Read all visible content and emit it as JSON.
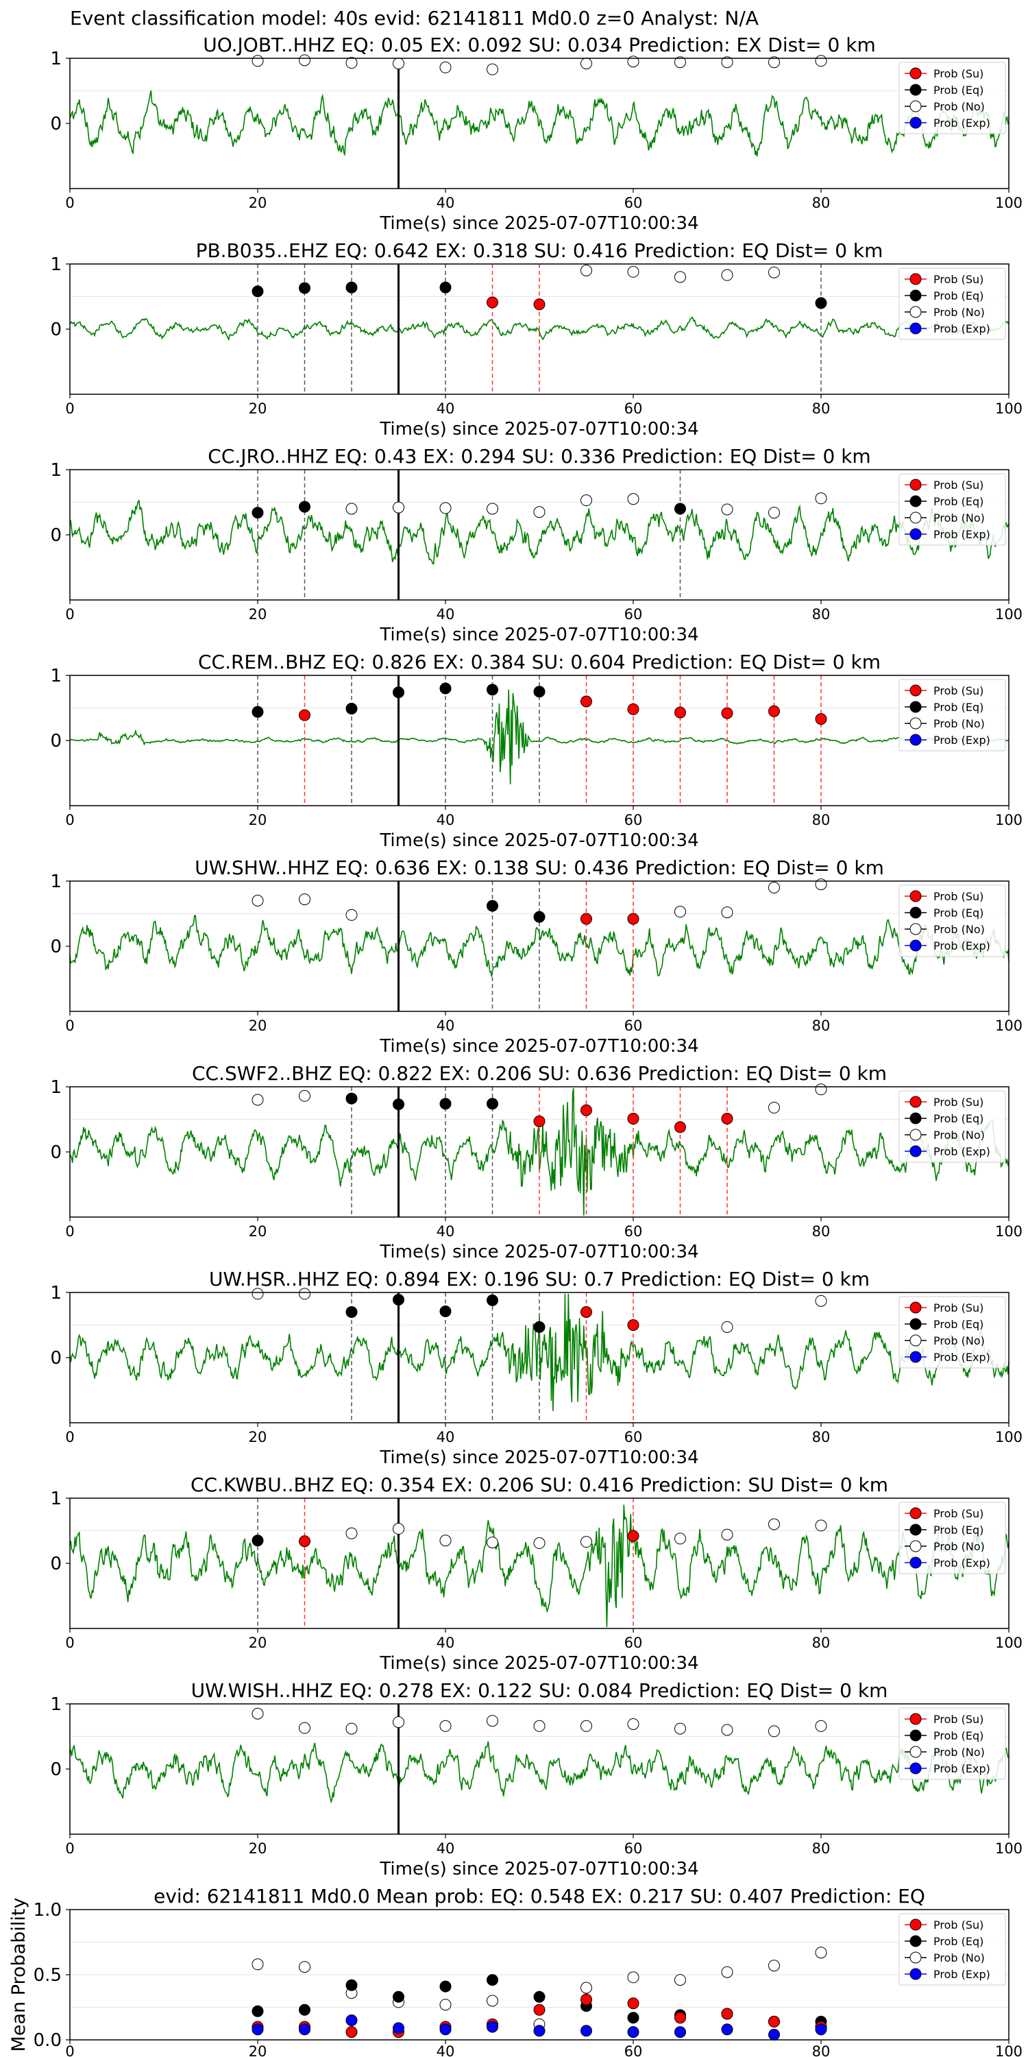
{
  "figure_title": "Event classification model: 40s evid: 62141811 Md0.0 z=0 Analyst: N/A",
  "colors": {
    "trace": "#008000",
    "su": "#ff0000",
    "eq": "#000000",
    "no": "#ffffff",
    "exp": "#0000ff",
    "eq_line": "#555555",
    "su_line": "#ff3333",
    "pick_line": "#000000"
  },
  "legend_labels": [
    "Prob (Su)",
    "Prob (Eq)",
    "Prob (No)",
    "Prob (Exp)"
  ],
  "chart_data": [
    {
      "type": "line",
      "title": "UO.JOBT..HHZ   EQ: 0.05  EX: 0.092  SU: 0.034   Prediction: EX    Dist= 0 km",
      "xlabel": "Time(s) since 2025-07-07T10:00:34",
      "xlim": [
        0,
        100
      ],
      "ylim": [
        -1,
        1
      ],
      "xticks": [
        0,
        20,
        40,
        60,
        80,
        100
      ],
      "yticks": [
        0,
        1
      ],
      "pick_time": 35,
      "noise_level": "medium",
      "burst": null,
      "legend": "right",
      "points": [
        {
          "x": 20,
          "y": 0.96,
          "cls": "no"
        },
        {
          "x": 25,
          "y": 0.97,
          "cls": "no"
        },
        {
          "x": 30,
          "y": 0.93,
          "cls": "no"
        },
        {
          "x": 35,
          "y": 0.92,
          "cls": "no"
        },
        {
          "x": 40,
          "y": 0.86,
          "cls": "no"
        },
        {
          "x": 45,
          "y": 0.83,
          "cls": "no"
        },
        {
          "x": 55,
          "y": 0.92,
          "cls": "no"
        },
        {
          "x": 60,
          "y": 0.95,
          "cls": "no"
        },
        {
          "x": 65,
          "y": 0.94,
          "cls": "no"
        },
        {
          "x": 70,
          "y": 0.94,
          "cls": "no"
        },
        {
          "x": 75,
          "y": 0.94,
          "cls": "no"
        },
        {
          "x": 80,
          "y": 0.96,
          "cls": "no"
        }
      ]
    },
    {
      "type": "line",
      "title": "PB.B035..EHZ   EQ: 0.642  EX: 0.318  SU: 0.416   Prediction: EQ    Dist= 0 km",
      "xlabel": "Time(s) since 2025-07-07T10:00:34",
      "xlim": [
        0,
        100
      ],
      "ylim": [
        -1,
        1
      ],
      "xticks": [
        0,
        20,
        40,
        60,
        80,
        100
      ],
      "yticks": [
        0,
        1
      ],
      "pick_time": 35,
      "noise_level": "low",
      "burst": null,
      "legend": "right",
      "points": [
        {
          "x": 20,
          "y": 0.58,
          "cls": "eq"
        },
        {
          "x": 25,
          "y": 0.63,
          "cls": "eq"
        },
        {
          "x": 30,
          "y": 0.64,
          "cls": "eq"
        },
        {
          "x": 40,
          "y": 0.64,
          "cls": "eq"
        },
        {
          "x": 45,
          "y": 0.41,
          "cls": "su"
        },
        {
          "x": 50,
          "y": 0.38,
          "cls": "su"
        },
        {
          "x": 55,
          "y": 0.9,
          "cls": "no"
        },
        {
          "x": 60,
          "y": 0.88,
          "cls": "no"
        },
        {
          "x": 65,
          "y": 0.8,
          "cls": "no"
        },
        {
          "x": 70,
          "y": 0.83,
          "cls": "no"
        },
        {
          "x": 75,
          "y": 0.87,
          "cls": "no"
        },
        {
          "x": 80,
          "y": 0.4,
          "cls": "eq"
        }
      ]
    },
    {
      "type": "line",
      "title": "CC.JRO..HHZ   EQ: 0.43  EX: 0.294  SU: 0.336   Prediction: EQ    Dist= 0 km",
      "xlabel": "Time(s) since 2025-07-07T10:00:34",
      "xlim": [
        0,
        100
      ],
      "ylim": [
        -1,
        1
      ],
      "xticks": [
        0,
        20,
        40,
        60,
        80,
        100
      ],
      "yticks": [
        0,
        1
      ],
      "pick_time": 35,
      "noise_level": "medium",
      "burst": null,
      "legend": "right",
      "points": [
        {
          "x": 20,
          "y": 0.34,
          "cls": "eq"
        },
        {
          "x": 25,
          "y": 0.43,
          "cls": "eq"
        },
        {
          "x": 30,
          "y": 0.4,
          "cls": "no"
        },
        {
          "x": 35,
          "y": 0.42,
          "cls": "no"
        },
        {
          "x": 40,
          "y": 0.41,
          "cls": "no"
        },
        {
          "x": 45,
          "y": 0.4,
          "cls": "no"
        },
        {
          "x": 50,
          "y": 0.35,
          "cls": "no"
        },
        {
          "x": 55,
          "y": 0.53,
          "cls": "no"
        },
        {
          "x": 60,
          "y": 0.55,
          "cls": "no"
        },
        {
          "x": 65,
          "y": 0.4,
          "cls": "eq"
        },
        {
          "x": 70,
          "y": 0.39,
          "cls": "no"
        },
        {
          "x": 75,
          "y": 0.34,
          "cls": "no"
        },
        {
          "x": 80,
          "y": 0.56,
          "cls": "no"
        }
      ]
    },
    {
      "type": "line",
      "title": "CC.REM..BHZ   EQ: 0.826  EX: 0.384  SU: 0.604   Prediction: EQ    Dist= 0 km",
      "xlabel": "Time(s) since 2025-07-07T10:00:34",
      "xlim": [
        0,
        100
      ],
      "ylim": [
        -1,
        1
      ],
      "xticks": [
        0,
        20,
        40,
        60,
        80,
        100
      ],
      "yticks": [
        0,
        1
      ],
      "pick_time": 35,
      "noise_level": "very_low",
      "burst": {
        "start": 44,
        "end": 49,
        "amp": 0.95
      },
      "legend": "right",
      "points": [
        {
          "x": 20,
          "y": 0.44,
          "cls": "eq"
        },
        {
          "x": 25,
          "y": 0.39,
          "cls": "su"
        },
        {
          "x": 30,
          "y": 0.49,
          "cls": "eq"
        },
        {
          "x": 35,
          "y": 0.74,
          "cls": "eq"
        },
        {
          "x": 40,
          "y": 0.8,
          "cls": "eq"
        },
        {
          "x": 45,
          "y": 0.78,
          "cls": "eq"
        },
        {
          "x": 50,
          "y": 0.75,
          "cls": "eq"
        },
        {
          "x": 55,
          "y": 0.6,
          "cls": "su"
        },
        {
          "x": 60,
          "y": 0.48,
          "cls": "su"
        },
        {
          "x": 65,
          "y": 0.43,
          "cls": "su"
        },
        {
          "x": 70,
          "y": 0.42,
          "cls": "su"
        },
        {
          "x": 75,
          "y": 0.45,
          "cls": "su"
        },
        {
          "x": 80,
          "y": 0.33,
          "cls": "su"
        }
      ]
    },
    {
      "type": "line",
      "title": "UW.SHW..HHZ   EQ: 0.636  EX: 0.138  SU: 0.436   Prediction: EQ    Dist= 0 km",
      "xlabel": "Time(s) since 2025-07-07T10:00:34",
      "xlim": [
        0,
        100
      ],
      "ylim": [
        -1,
        1
      ],
      "xticks": [
        0,
        20,
        40,
        60,
        80,
        100
      ],
      "yticks": [
        0,
        1
      ],
      "pick_time": 35,
      "noise_level": "medium",
      "burst": null,
      "legend": "right",
      "points": [
        {
          "x": 20,
          "y": 0.7,
          "cls": "no"
        },
        {
          "x": 25,
          "y": 0.72,
          "cls": "no"
        },
        {
          "x": 30,
          "y": 0.48,
          "cls": "no"
        },
        {
          "x": 45,
          "y": 0.62,
          "cls": "eq"
        },
        {
          "x": 50,
          "y": 0.45,
          "cls": "eq"
        },
        {
          "x": 55,
          "y": 0.42,
          "cls": "su"
        },
        {
          "x": 60,
          "y": 0.42,
          "cls": "su"
        },
        {
          "x": 65,
          "y": 0.53,
          "cls": "no"
        },
        {
          "x": 70,
          "y": 0.52,
          "cls": "no"
        },
        {
          "x": 75,
          "y": 0.9,
          "cls": "no"
        },
        {
          "x": 80,
          "y": 0.95,
          "cls": "no"
        }
      ]
    },
    {
      "type": "line",
      "title": "CC.SWF2..BHZ   EQ: 0.822  EX: 0.206  SU: 0.636   Prediction: EQ    Dist= 0 km",
      "xlabel": "Time(s) since 2025-07-07T10:00:34",
      "xlim": [
        0,
        100
      ],
      "ylim": [
        -1,
        1
      ],
      "xticks": [
        0,
        20,
        40,
        60,
        80,
        100
      ],
      "yticks": [
        0,
        1
      ],
      "pick_time": 35,
      "noise_level": "medium",
      "burst": {
        "start": 45,
        "end": 62,
        "amp": 0.7
      },
      "legend": "right",
      "points": [
        {
          "x": 20,
          "y": 0.8,
          "cls": "no"
        },
        {
          "x": 25,
          "y": 0.86,
          "cls": "no"
        },
        {
          "x": 30,
          "y": 0.82,
          "cls": "eq"
        },
        {
          "x": 35,
          "y": 0.73,
          "cls": "eq"
        },
        {
          "x": 40,
          "y": 0.74,
          "cls": "eq"
        },
        {
          "x": 45,
          "y": 0.74,
          "cls": "eq"
        },
        {
          "x": 50,
          "y": 0.47,
          "cls": "su"
        },
        {
          "x": 55,
          "y": 0.64,
          "cls": "su"
        },
        {
          "x": 60,
          "y": 0.51,
          "cls": "su"
        },
        {
          "x": 65,
          "y": 0.38,
          "cls": "su"
        },
        {
          "x": 70,
          "y": 0.51,
          "cls": "su"
        },
        {
          "x": 75,
          "y": 0.68,
          "cls": "no"
        },
        {
          "x": 80,
          "y": 0.96,
          "cls": "no"
        }
      ]
    },
    {
      "type": "line",
      "title": "UW.HSR..HHZ   EQ: 0.894  EX: 0.196  SU: 0.7   Prediction: EQ    Dist= 0 km",
      "xlabel": "Time(s) since 2025-07-07T10:00:34",
      "xlim": [
        0,
        100
      ],
      "ylim": [
        -1,
        1
      ],
      "xticks": [
        0,
        20,
        40,
        60,
        80,
        100
      ],
      "yticks": [
        0,
        1
      ],
      "pick_time": 35,
      "noise_level": "medium",
      "burst": {
        "start": 45,
        "end": 60,
        "amp": 0.85
      },
      "legend": "right",
      "points": [
        {
          "x": 20,
          "y": 0.98,
          "cls": "no"
        },
        {
          "x": 25,
          "y": 0.98,
          "cls": "no"
        },
        {
          "x": 30,
          "y": 0.7,
          "cls": "eq"
        },
        {
          "x": 35,
          "y": 0.89,
          "cls": "eq"
        },
        {
          "x": 40,
          "y": 0.71,
          "cls": "eq"
        },
        {
          "x": 45,
          "y": 0.88,
          "cls": "eq"
        },
        {
          "x": 50,
          "y": 0.47,
          "cls": "eq"
        },
        {
          "x": 55,
          "y": 0.7,
          "cls": "su"
        },
        {
          "x": 60,
          "y": 0.5,
          "cls": "su"
        },
        {
          "x": 70,
          "y": 0.47,
          "cls": "no"
        },
        {
          "x": 80,
          "y": 0.87,
          "cls": "no"
        }
      ]
    },
    {
      "type": "line",
      "title": "CC.KWBU..BHZ   EQ: 0.354  EX: 0.206  SU: 0.416   Prediction: SU    Dist= 0 km",
      "xlabel": "Time(s) since 2025-07-07T10:00:34",
      "xlim": [
        0,
        100
      ],
      "ylim": [
        -1,
        1
      ],
      "xticks": [
        0,
        20,
        40,
        60,
        80,
        100
      ],
      "yticks": [
        0,
        1
      ],
      "pick_time": 35,
      "noise_level": "high",
      "burst": {
        "start": 55,
        "end": 61,
        "amp": 0.95
      },
      "legend": "right",
      "points": [
        {
          "x": 20,
          "y": 0.35,
          "cls": "eq"
        },
        {
          "x": 25,
          "y": 0.34,
          "cls": "su"
        },
        {
          "x": 30,
          "y": 0.46,
          "cls": "no"
        },
        {
          "x": 35,
          "y": 0.53,
          "cls": "no"
        },
        {
          "x": 40,
          "y": 0.35,
          "cls": "no"
        },
        {
          "x": 45,
          "y": 0.32,
          "cls": "no"
        },
        {
          "x": 50,
          "y": 0.31,
          "cls": "no"
        },
        {
          "x": 55,
          "y": 0.33,
          "cls": "no"
        },
        {
          "x": 60,
          "y": 0.42,
          "cls": "su"
        },
        {
          "x": 65,
          "y": 0.38,
          "cls": "no"
        },
        {
          "x": 70,
          "y": 0.44,
          "cls": "no"
        },
        {
          "x": 75,
          "y": 0.6,
          "cls": "no"
        },
        {
          "x": 80,
          "y": 0.58,
          "cls": "no"
        }
      ]
    },
    {
      "type": "line",
      "title": "UW.WISH..HHZ   EQ: 0.278  EX: 0.122  SU: 0.084   Prediction: EQ    Dist= 0 km",
      "xlabel": "Time(s) since 2025-07-07T10:00:34",
      "xlim": [
        0,
        100
      ],
      "ylim": [
        -1,
        1
      ],
      "xticks": [
        0,
        20,
        40,
        60,
        80,
        100
      ],
      "yticks": [
        0,
        1
      ],
      "pick_time": 35,
      "noise_level": "medium",
      "burst": null,
      "legend": "right",
      "points": [
        {
          "x": 20,
          "y": 0.85,
          "cls": "no"
        },
        {
          "x": 25,
          "y": 0.63,
          "cls": "no"
        },
        {
          "x": 30,
          "y": 0.62,
          "cls": "no"
        },
        {
          "x": 35,
          "y": 0.72,
          "cls": "no"
        },
        {
          "x": 40,
          "y": 0.66,
          "cls": "no"
        },
        {
          "x": 45,
          "y": 0.74,
          "cls": "no"
        },
        {
          "x": 50,
          "y": 0.66,
          "cls": "no"
        },
        {
          "x": 55,
          "y": 0.66,
          "cls": "no"
        },
        {
          "x": 60,
          "y": 0.69,
          "cls": "no"
        },
        {
          "x": 65,
          "y": 0.62,
          "cls": "no"
        },
        {
          "x": 70,
          "y": 0.6,
          "cls": "no"
        },
        {
          "x": 75,
          "y": 0.58,
          "cls": "no"
        },
        {
          "x": 80,
          "y": 0.66,
          "cls": "no"
        }
      ]
    },
    {
      "type": "scatter",
      "title": "evid: 62141811  Md0.0   Mean prob:    EQ: 0.548  EX: 0.217  SU: 0.407   Prediction: EQ",
      "ylabel": "Mean Probability",
      "xlim": [
        0,
        100
      ],
      "ylim": [
        0,
        1
      ],
      "xticks": [
        0,
        20,
        40,
        60,
        80,
        100
      ],
      "yticks": [
        "0.0",
        "0.5",
        "1.0"
      ],
      "legend": "right",
      "x": [
        20,
        25,
        30,
        35,
        40,
        45,
        50,
        55,
        60,
        65,
        70,
        75,
        80
      ],
      "series": [
        {
          "name": "Prob (No)",
          "cls": "no",
          "values": [
            0.58,
            0.56,
            0.36,
            0.29,
            0.27,
            0.3,
            0.12,
            0.4,
            0.48,
            0.46,
            0.52,
            0.57,
            0.67
          ]
        },
        {
          "name": "Prob (Eq)",
          "cls": "eq",
          "values": [
            0.22,
            0.23,
            0.42,
            0.33,
            0.41,
            0.46,
            0.33,
            0.26,
            0.17,
            0.19,
            0.2,
            0.14,
            0.14
          ]
        },
        {
          "name": "Prob (Su)",
          "cls": "su",
          "values": [
            0.1,
            0.1,
            0.06,
            0.06,
            0.1,
            0.12,
            0.23,
            0.31,
            0.28,
            0.17,
            0.2,
            0.14,
            0.1
          ]
        },
        {
          "name": "Prob (Exp)",
          "cls": "exp",
          "values": [
            0.08,
            0.08,
            0.15,
            0.09,
            0.08,
            0.1,
            0.07,
            0.07,
            0.06,
            0.06,
            0.08,
            0.04,
            0.08
          ]
        }
      ]
    }
  ]
}
